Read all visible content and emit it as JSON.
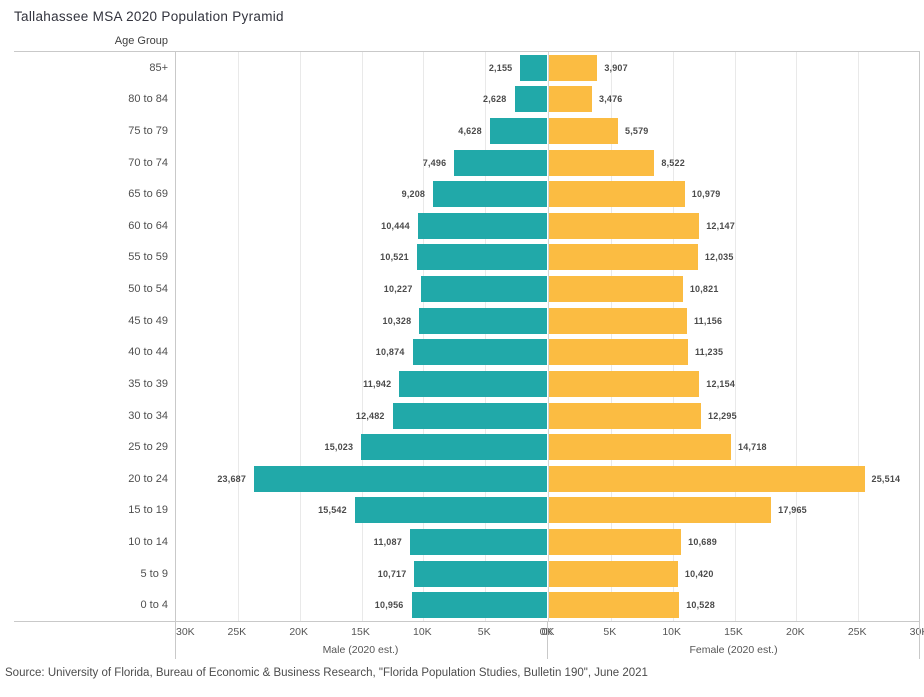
{
  "page": {
    "title": "Tallahassee MSA 2020 Population Pyramid",
    "row_header": "Age Group",
    "source": "Source: University of Florida, Bureau of Economic & Business Research, \"Florida Population Studies, Bulletin 190\", June 2021"
  },
  "axes": {
    "male_title": "Male (2020 est.)",
    "female_title": "Female (2020 est.)",
    "male_ticks": [
      "30K",
      "25K",
      "20K",
      "15K",
      "10K",
      "5K",
      "0K"
    ],
    "female_ticks": [
      "0K",
      "5K",
      "10K",
      "15K",
      "20K",
      "25K",
      "30K"
    ]
  },
  "colors": {
    "male_bar": "#21A9A9",
    "female_bar": "#FBBC42"
  },
  "chart_data": {
    "type": "bar",
    "orientation": "horizontal-pyramid",
    "title": "Tallahassee MSA 2020 Population Pyramid",
    "ylabel": "Age Group",
    "xlim": [
      0,
      30000
    ],
    "x_tick_step": 5000,
    "grid": true,
    "data_labels": true,
    "categories": [
      "85+",
      "80 to 84",
      "75 to 79",
      "70 to 74",
      "65 to 69",
      "60 to 64",
      "55 to 59",
      "50 to 54",
      "45 to 49",
      "40 to 44",
      "35 to 39",
      "30 to 34",
      "25 to 29",
      "20 to 24",
      "15 to 19",
      "10 to 14",
      "5 to 9",
      "0 to 4"
    ],
    "series": [
      {
        "name": "Male (2020 est.)",
        "color": "#21A9A9",
        "values": [
          2155,
          2628,
          4628,
          7496,
          9208,
          10444,
          10521,
          10227,
          10328,
          10874,
          11942,
          12482,
          15023,
          23687,
          15542,
          11087,
          10717,
          10956
        ],
        "labels": [
          "2,155",
          "2,628",
          "4,628",
          "7,496",
          "9,208",
          "10,444",
          "10,521",
          "10,227",
          "10,328",
          "10,874",
          "11,942",
          "12,482",
          "15,023",
          "23,687",
          "15,542",
          "11,087",
          "10,717",
          "10,956"
        ]
      },
      {
        "name": "Female (2020 est.)",
        "color": "#FBBC42",
        "values": [
          3907,
          3476,
          5579,
          8522,
          10979,
          12147,
          12035,
          10821,
          11156,
          11235,
          12154,
          12295,
          14718,
          25514,
          17965,
          10689,
          10420,
          10528
        ],
        "labels": [
          "3,907",
          "3,476",
          "5,579",
          "8,522",
          "10,979",
          "12,147",
          "12,035",
          "10,821",
          "11,156",
          "11,235",
          "12,154",
          "12,295",
          "14,718",
          "25,514",
          "17,965",
          "10,689",
          "10,420",
          "10,528"
        ]
      }
    ]
  }
}
